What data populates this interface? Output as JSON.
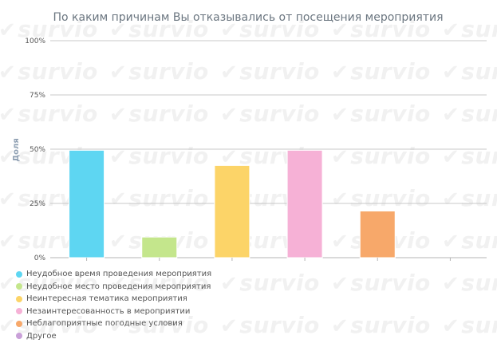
{
  "watermark": "survio",
  "chart_data": {
    "type": "bar",
    "title": "По каким причинам Вы отказывались от посещения мероприятия",
    "ylabel": "Доля",
    "xlabel": "",
    "ylim": [
      0,
      100
    ],
    "yticks": [
      "0%",
      "25%",
      "50%",
      "75%",
      "100%"
    ],
    "grid": true,
    "legend_position": "bottom",
    "categories": [
      "Неудобное время проведения мероприятия",
      "Неудобное место проведения мероприятия",
      "Неинтересная тематика мероприятия",
      "Незаинтересованность в мероприятии",
      "Неблагоприятные погодные условия",
      "Другое"
    ],
    "values": [
      49.5,
      9.5,
      42.5,
      49.5,
      21.5,
      0
    ],
    "colors": [
      "#5ed6f2",
      "#c4e68c",
      "#fcd468",
      "#f6b1d6",
      "#f7a86a",
      "#c9a0d8"
    ]
  }
}
